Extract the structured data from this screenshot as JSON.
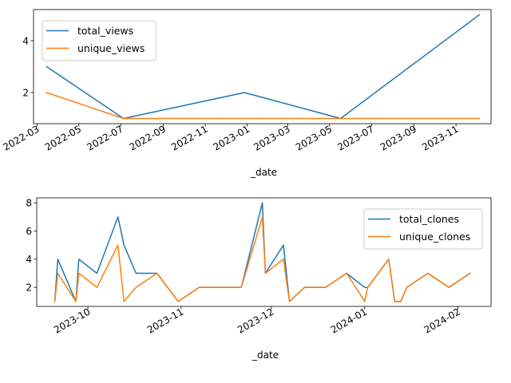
{
  "chart_data": [
    {
      "type": "line",
      "xlabel": "_date",
      "ylabel": "",
      "x_type": "date",
      "xlim": [
        "2022-02-24",
        "2023-12-22"
      ],
      "ylim": [
        0.8,
        5.2
      ],
      "x_ticks": [
        "2022-03-01",
        "2022-05-01",
        "2022-07-01",
        "2022-09-01",
        "2022-11-01",
        "2023-01-01",
        "2023-03-01",
        "2023-05-01",
        "2023-07-01",
        "2023-09-01",
        "2023-11-01"
      ],
      "x_tick_labels": [
        "2022-03",
        "2022-05",
        "2022-07",
        "2022-09",
        "2022-11",
        "2023-01",
        "2023-03",
        "2023-05",
        "2023-07",
        "2023-09",
        "2023-11"
      ],
      "y_ticks": [
        2,
        4
      ],
      "legend_position": "top-left",
      "x": [
        "2022-03-15",
        "2022-07-05",
        "2022-12-28",
        "2023-05-17",
        "2023-12-05"
      ],
      "series": [
        {
          "name": "total_views",
          "color": "#1f77b4",
          "values": [
            3,
            1,
            2,
            1,
            5
          ]
        },
        {
          "name": "unique_views",
          "color": "#ff7f0e",
          "values": [
            2,
            1,
            1,
            1,
            1
          ]
        }
      ]
    },
    {
      "type": "line",
      "xlabel": "_date",
      "ylabel": "",
      "x_type": "date",
      "xlim": [
        "2023-09-14",
        "2024-02-12"
      ],
      "ylim": [
        0.65,
        8.35
      ],
      "x_ticks": [
        "2023-10-01",
        "2023-11-01",
        "2023-12-01",
        "2024-01-01",
        "2024-02-01"
      ],
      "x_tick_labels": [
        "2023-10",
        "2023-11",
        "2023-12",
        "2024-01",
        "2024-02"
      ],
      "y_ticks": [
        2,
        4,
        6,
        8
      ],
      "legend_position": "top-right",
      "x": [
        "2023-09-20",
        "2023-09-21",
        "2023-09-27",
        "2023-09-28",
        "2023-10-04",
        "2023-10-11",
        "2023-10-13",
        "2023-10-17",
        "2023-10-24",
        "2023-10-31",
        "2023-11-07",
        "2023-11-21",
        "2023-11-28",
        "2023-11-29",
        "2023-12-05",
        "2023-12-07",
        "2023-12-12",
        "2023-12-19",
        "2023-12-26",
        "2024-01-01",
        "2024-01-02",
        "2024-01-09",
        "2024-01-11",
        "2024-01-13",
        "2024-01-15",
        "2024-01-22",
        "2024-01-29",
        "2024-02-05"
      ],
      "series": [
        {
          "name": "total_clones",
          "color": "#1f77b4",
          "values": [
            1,
            4,
            1,
            4,
            3,
            7,
            5,
            3,
            3,
            1,
            2,
            2,
            8,
            3,
            5,
            1,
            2,
            2,
            3,
            2,
            2,
            4,
            1,
            1,
            2,
            3,
            2,
            3
          ]
        },
        {
          "name": "unique_clones",
          "color": "#ff7f0e",
          "values": [
            1,
            3,
            1,
            3,
            2,
            5,
            1,
            2,
            3,
            1,
            2,
            2,
            7,
            3,
            4,
            1,
            2,
            2,
            3,
            1,
            2,
            4,
            1,
            1,
            2,
            3,
            2,
            3
          ]
        }
      ]
    }
  ]
}
